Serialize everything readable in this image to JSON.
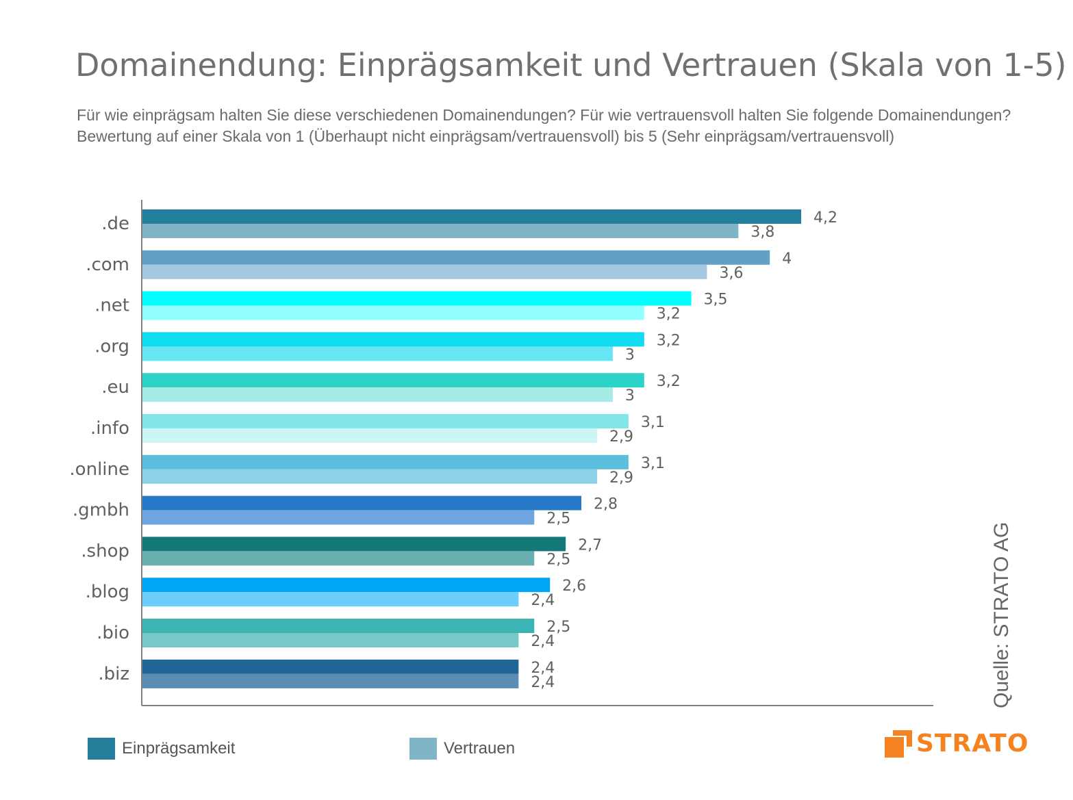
{
  "title": "Domainendung: Einprägsamkeit und Vertrauen (Skala von 1-5)",
  "subtitle_line1": "Für wie einprägsam halten Sie diese verschiedenen Domainendungen? Für wie vertrauensvoll halten Sie folgende Domainendungen?",
  "subtitle_line2": "Bewertung auf einer Skala von 1 (Überhaupt nicht einprägsam/vertrauensvoll) bis 5 (Sehr einprägsam/vertrauensvoll)",
  "source": "Quelle: STRATO  AG",
  "logo_text": "STRATO",
  "logo_color": "#f58220",
  "legend": [
    {
      "label": "Einprägsamkeit",
      "color": "#237e9b"
    },
    {
      "label": "Vertrauen",
      "color": "#7fb5c6"
    }
  ],
  "chart_data": {
    "type": "bar",
    "orientation": "horizontal",
    "categories": [
      ".de",
      ".com",
      ".net",
      ".org",
      ".eu",
      ".info",
      ".online",
      ".gmbh",
      ".shop",
      ".blog",
      ".bio",
      ".biz"
    ],
    "series": [
      {
        "name": "Einprägsamkeit",
        "values": [
          4.2,
          4,
          3.5,
          3.2,
          3.2,
          3.1,
          3.1,
          2.8,
          2.7,
          2.6,
          2.5,
          2.4
        ],
        "labels": [
          "4,2",
          "4",
          "3,5",
          "3,2",
          "3,2",
          "3,1",
          "3,1",
          "2,8",
          "2,7",
          "2,6",
          "2,5",
          "2,4"
        ],
        "colors": [
          "#237e9b",
          "#64a0c6",
          "#00ffff",
          "#0fdcf0",
          "#2dd2c8",
          "#82e6eb",
          "#5abedc",
          "#2878c8",
          "#147878",
          "#00a5f5",
          "#3cb4b4",
          "#236496"
        ]
      },
      {
        "name": "Vertrauen",
        "values": [
          3.8,
          3.6,
          3.2,
          3,
          3,
          2.9,
          2.9,
          2.5,
          2.5,
          2.4,
          2.4,
          2.4
        ],
        "labels": [
          "3,8",
          "3,6",
          "3,2",
          "3",
          "3",
          "2,9",
          "2,9",
          "2,5",
          "2,5",
          "2,4",
          "2,4",
          "2,4"
        ],
        "colors": [
          "#7fb5c6",
          "#a5c8e1",
          "#91ffff",
          "#64e6f5",
          "#a5ebe6",
          "#cdf5f5",
          "#8cd2e6",
          "#6ea5e1",
          "#69afaf",
          "#6ecdfa",
          "#78c8c8",
          "#5a8cb4"
        ]
      }
    ],
    "xlim": [
      0,
      5
    ],
    "grid": false,
    "legend_position": "bottom-left"
  }
}
